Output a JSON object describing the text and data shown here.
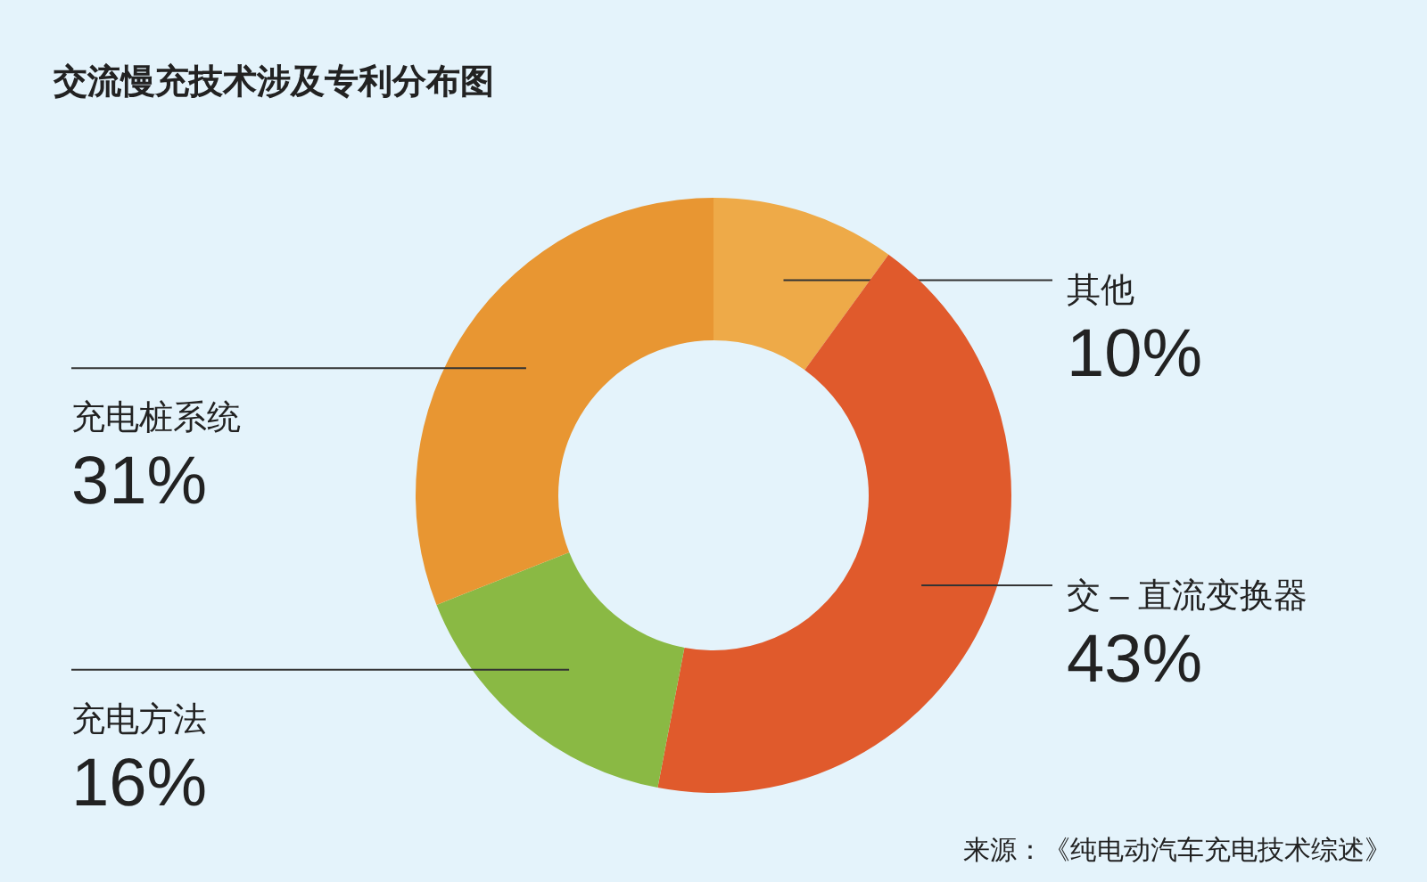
{
  "chart_data": {
    "type": "donut",
    "title": "交流慢充技术涉及专利分布图",
    "categories": [
      "其他",
      "交 – 直流变换器",
      "充电方法",
      "充电桩系统"
    ],
    "values": [
      10,
      43,
      16,
      31
    ],
    "value_labels": [
      "10%",
      "43%",
      "16%",
      "31%"
    ],
    "colors": [
      "#eeaa48",
      "#e05a2c",
      "#8ab944",
      "#e89632"
    ],
    "annotations": [
      "来源：《纯电动汽车充电技术综述》"
    ]
  }
}
